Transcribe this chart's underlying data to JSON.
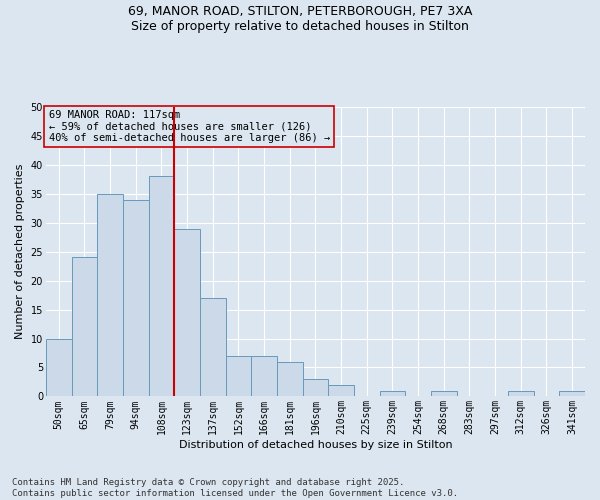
{
  "title_line1": "69, MANOR ROAD, STILTON, PETERBOROUGH, PE7 3XA",
  "title_line2": "Size of property relative to detached houses in Stilton",
  "xlabel": "Distribution of detached houses by size in Stilton",
  "ylabel": "Number of detached properties",
  "categories": [
    "50sqm",
    "65sqm",
    "79sqm",
    "94sqm",
    "108sqm",
    "123sqm",
    "137sqm",
    "152sqm",
    "166sqm",
    "181sqm",
    "196sqm",
    "210sqm",
    "225sqm",
    "239sqm",
    "254sqm",
    "268sqm",
    "283sqm",
    "297sqm",
    "312sqm",
    "326sqm",
    "341sqm"
  ],
  "values": [
    10,
    24,
    35,
    34,
    38,
    29,
    17,
    7,
    7,
    6,
    3,
    2,
    0,
    1,
    0,
    1,
    0,
    0,
    1,
    0,
    1
  ],
  "bar_color": "#ccd9e8",
  "bar_edgecolor": "#6699bb",
  "vline_color": "#cc0000",
  "annotation_text": "69 MANOR ROAD: 117sqm\n← 59% of detached houses are smaller (126)\n40% of semi-detached houses are larger (86) →",
  "annotation_box_edgecolor": "#cc0000",
  "annotation_fontsize": 7.5,
  "ylim": [
    0,
    50
  ],
  "yticks": [
    0,
    5,
    10,
    15,
    20,
    25,
    30,
    35,
    40,
    45,
    50
  ],
  "background_color": "#dce6f0",
  "plot_bg_color": "#dce6f0",
  "grid_color": "#ffffff",
  "title_fontsize": 9,
  "axis_label_fontsize": 8,
  "tick_fontsize": 7,
  "footer_text": "Contains HM Land Registry data © Crown copyright and database right 2025.\nContains public sector information licensed under the Open Government Licence v3.0.",
  "footer_fontsize": 6.5
}
